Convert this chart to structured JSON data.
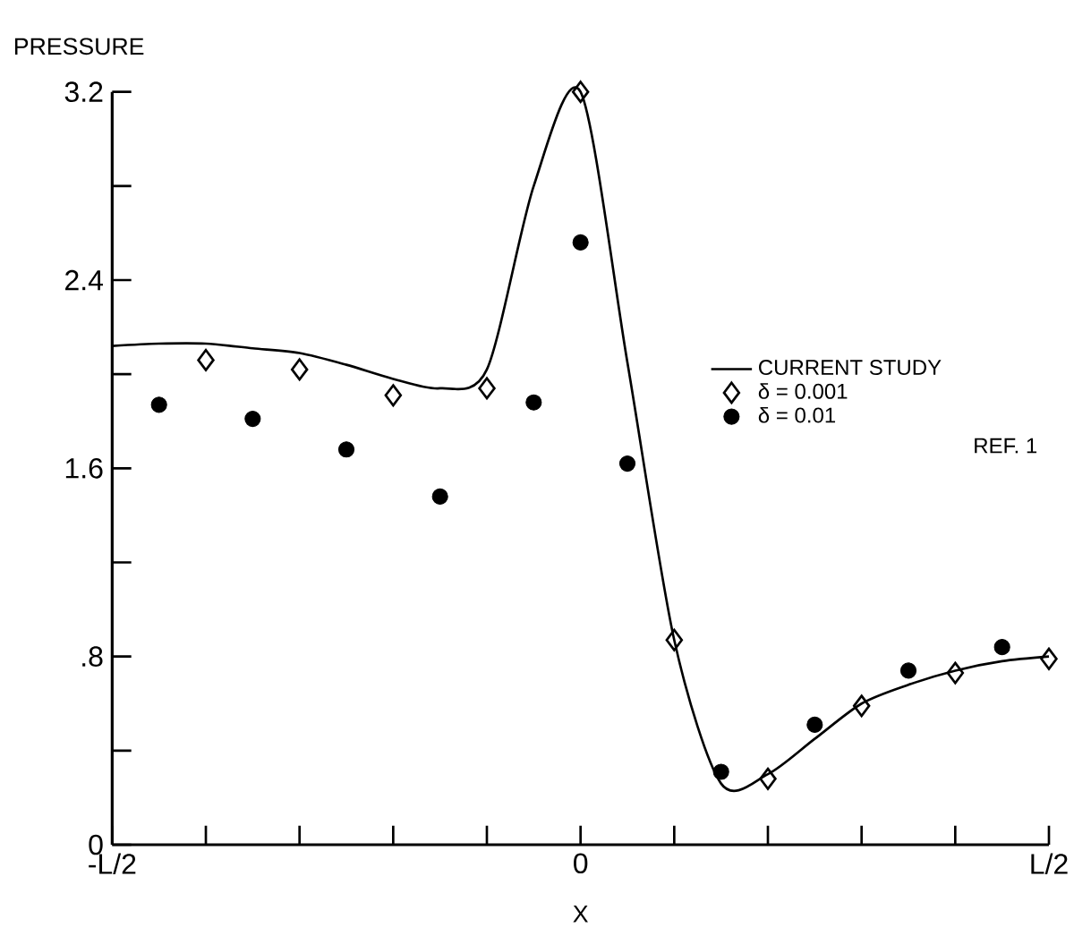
{
  "chart_data": {
    "type": "scatter",
    "xlabel": "X",
    "ylabel": "PRESSURE",
    "categories": [
      "-L/2",
      null,
      null,
      null,
      null,
      null,
      null,
      null,
      null,
      null,
      "0",
      null,
      null,
      null,
      null,
      null,
      null,
      null,
      null,
      null,
      "L/2"
    ],
    "ylim": [
      0,
      3.2
    ],
    "yticks": [
      0,
      {
        "value": 0.4,
        "label": null
      },
      {
        "value": 0.8,
        "label": ".8"
      },
      {
        "value": 1.2,
        "label": null
      },
      1.6,
      {
        "value": 2.0,
        "label": null
      },
      2.4,
      {
        "value": 2.8,
        "label": null
      },
      3.2
    ],
    "legend": "right",
    "grid": false,
    "annotations": [
      "REF. 1"
    ],
    "series": [
      {
        "name": "CURRENT STUDY",
        "type": "line",
        "marker": "none",
        "line_style": "solid",
        "color": "#000000",
        "values": [
          2.12,
          2.13,
          2.13,
          2.11,
          2.09,
          2.04,
          1.98,
          1.94,
          2.02,
          2.8,
          3.2,
          2.05,
          0.87,
          0.26,
          0.3,
          0.45,
          0.6,
          0.68,
          0.74,
          0.78,
          0.8
        ]
      },
      {
        "name": "δ = 0.001",
        "marker": "diamond",
        "color": "#000000",
        "values": [
          null,
          null,
          2.06,
          null,
          2.02,
          null,
          1.91,
          null,
          1.94,
          null,
          3.2,
          null,
          0.87,
          null,
          0.28,
          null,
          0.59,
          null,
          0.73,
          null,
          0.79
        ]
      },
      {
        "name": "δ = 0.01",
        "marker": "circle",
        "color": "#000000",
        "values": [
          null,
          1.87,
          null,
          1.81,
          null,
          1.68,
          null,
          1.48,
          null,
          1.88,
          2.56,
          1.62,
          null,
          0.31,
          null,
          0.51,
          null,
          0.74,
          null,
          0.84,
          null
        ]
      }
    ]
  }
}
